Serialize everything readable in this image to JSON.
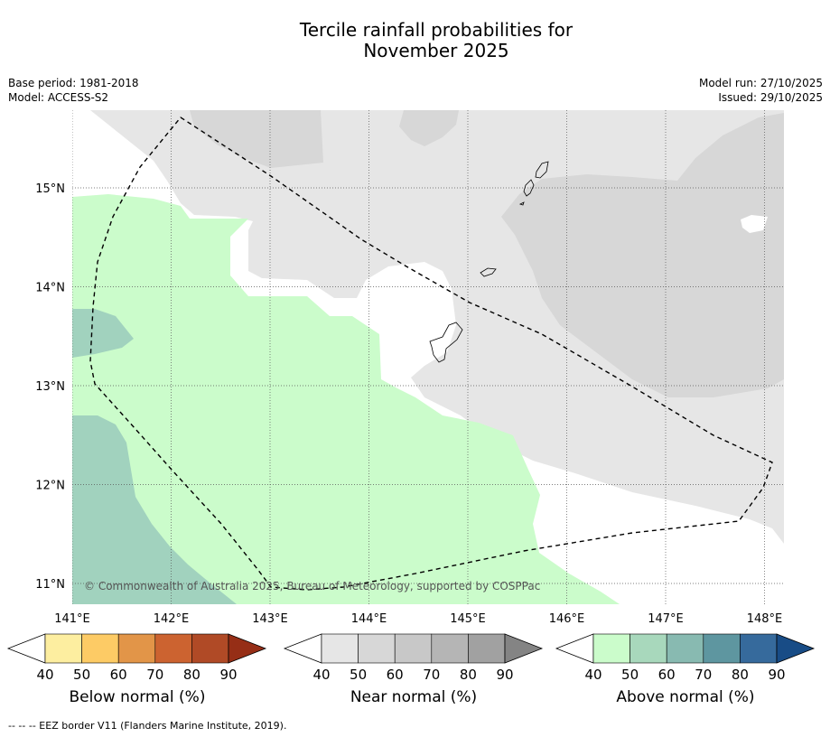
{
  "title_line1": "Tercile rainfall probabilities for",
  "title_line2": "November 2025",
  "base_period": "Base period: 1981-2018",
  "model": "Model: ACCESS-S2",
  "model_run": "Model run: 27/10/2025",
  "issued": "Issued: 29/10/2025",
  "copyright": "© Commonwealth of Australia 2025, Bureau of Meteorology, supported by COSPPac",
  "footnote": "--  --  -- EEZ border V11 (Flanders Marine Institute, 2019).",
  "map": {
    "lon_labels": [
      "141°E",
      "142°E",
      "143°E",
      "144°E",
      "145°E",
      "146°E",
      "147°E",
      "148°E"
    ],
    "lon_values": [
      141,
      142,
      143,
      144,
      145,
      146,
      147,
      148
    ],
    "lat_labels": [
      "15°N",
      "14°N",
      "13°N",
      "12°N",
      "11°N"
    ],
    "lat_values": [
      15,
      14,
      13,
      12,
      11
    ],
    "lon_range": [
      141,
      148.2
    ],
    "lat_range": [
      10.8,
      15.8
    ]
  },
  "colorbars": [
    {
      "label": "Below normal (%)",
      "ticks": [
        "40",
        "50",
        "60",
        "70",
        "80",
        "90"
      ],
      "colors": [
        "#fdeea0",
        "#fdcb65",
        "#e29548",
        "#cc6330",
        "#b04a26",
        "#962e16"
      ]
    },
    {
      "label": "Near normal (%)",
      "ticks": [
        "40",
        "50",
        "60",
        "70",
        "80",
        "90"
      ],
      "colors": [
        "#e6e6e6",
        "#d7d7d7",
        "#c8c8c8",
        "#b5b5b5",
        "#a1a1a1",
        "#848484"
      ]
    },
    {
      "label": "Above normal (%)",
      "ticks": [
        "40",
        "50",
        "60",
        "70",
        "80",
        "90"
      ],
      "colors": [
        "#cbfccb",
        "#a8d8bc",
        "#88bab1",
        "#5e96a0",
        "#366a9c",
        "#184c86"
      ]
    }
  ],
  "colors": {
    "near_40": "#e6e6e6",
    "near_50": "#d7d7d7",
    "above_40": "#cbfccb",
    "above_50": "#a1d2be",
    "grid": "#555555"
  }
}
